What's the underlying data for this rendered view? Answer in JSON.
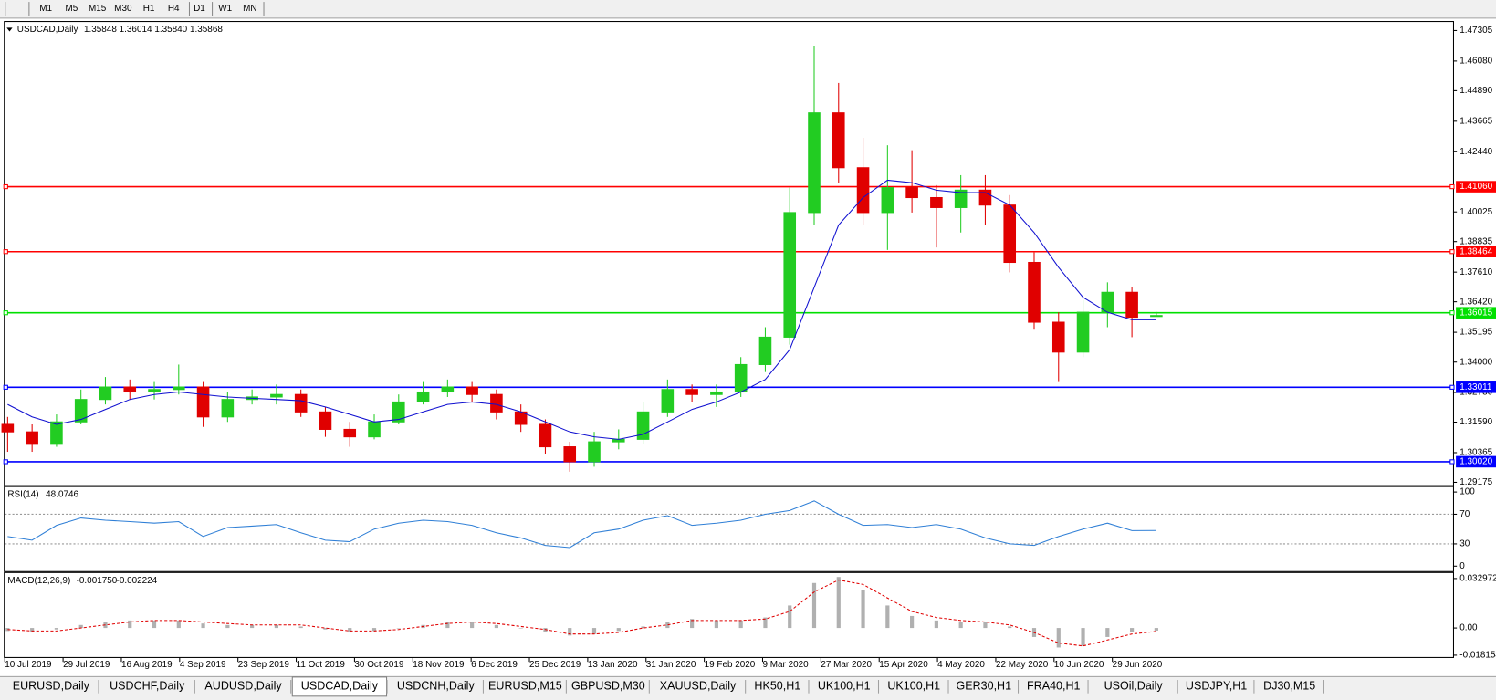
{
  "toolbar": {
    "timeframes": [
      "M1",
      "M5",
      "M15",
      "M30",
      "H1",
      "H4",
      "D1",
      "W1",
      "MN"
    ]
  },
  "header": {
    "symbol": "USDCAD,Daily",
    "open": "1.35848",
    "high": "1.36014",
    "low": "1.35840",
    "close": "1.35868"
  },
  "chart_data": {
    "type": "candlestick",
    "up_color": "#22cc22",
    "down_color": "#e00000",
    "open": [
      1.315,
      1.312,
      1.307,
      1.316,
      1.325,
      1.33,
      1.328,
      1.329,
      1.33,
      1.318,
      1.325,
      1.326,
      1.327,
      1.32,
      1.313,
      1.31,
      1.316,
      1.324,
      1.328,
      1.33,
      1.327,
      1.32,
      1.315,
      1.306,
      1.3,
      1.308,
      1.309,
      1.32,
      1.329,
      1.327,
      1.328,
      1.339,
      1.35,
      1.4,
      1.44,
      1.418,
      1.4,
      1.41,
      1.406,
      1.402,
      1.409,
      1.403,
      1.38,
      1.356,
      1.344,
      1.36,
      1.368,
      1.35848
    ],
    "high": [
      1.318,
      1.315,
      1.319,
      1.329,
      1.334,
      1.333,
      1.332,
      1.339,
      1.332,
      1.328,
      1.329,
      1.331,
      1.329,
      1.322,
      1.316,
      1.319,
      1.327,
      1.332,
      1.333,
      1.332,
      1.329,
      1.323,
      1.317,
      1.308,
      1.312,
      1.313,
      1.324,
      1.333,
      1.331,
      1.331,
      1.342,
      1.354,
      1.41,
      1.467,
      1.452,
      1.43,
      1.427,
      1.425,
      1.411,
      1.415,
      1.415,
      1.407,
      1.384,
      1.36,
      1.365,
      1.372,
      1.37,
      1.36014
    ],
    "low": [
      1.304,
      1.304,
      1.306,
      1.315,
      1.323,
      1.325,
      1.325,
      1.327,
      1.314,
      1.316,
      1.323,
      1.323,
      1.318,
      1.31,
      1.306,
      1.309,
      1.315,
      1.323,
      1.326,
      1.324,
      1.317,
      1.312,
      1.303,
      1.296,
      1.298,
      1.305,
      1.307,
      1.318,
      1.324,
      1.322,
      1.326,
      1.336,
      1.347,
      1.395,
      1.412,
      1.395,
      1.385,
      1.4,
      1.386,
      1.392,
      1.395,
      1.376,
      1.353,
      1.332,
      1.342,
      1.354,
      1.35,
      1.3584
    ],
    "close": [
      1.312,
      1.307,
      1.316,
      1.325,
      1.33,
      1.328,
      1.329,
      1.33,
      1.318,
      1.325,
      1.326,
      1.327,
      1.32,
      1.313,
      1.31,
      1.316,
      1.324,
      1.328,
      1.33,
      1.327,
      1.32,
      1.315,
      1.306,
      1.3,
      1.308,
      1.309,
      1.32,
      1.329,
      1.327,
      1.328,
      1.339,
      1.35,
      1.4,
      1.44,
      1.418,
      1.4,
      1.41,
      1.406,
      1.402,
      1.409,
      1.403,
      1.38,
      1.356,
      1.344,
      1.36,
      1.368,
      1.358,
      1.35868
    ],
    "moving_average": {
      "color": "#1010d0",
      "values": [
        1.323,
        1.318,
        1.315,
        1.317,
        1.321,
        1.325,
        1.327,
        1.328,
        1.327,
        1.326,
        1.3255,
        1.325,
        1.3245,
        1.322,
        1.319,
        1.316,
        1.317,
        1.32,
        1.323,
        1.324,
        1.323,
        1.32,
        1.316,
        1.312,
        1.31,
        1.309,
        1.311,
        1.316,
        1.321,
        1.324,
        1.328,
        1.333,
        1.345,
        1.37,
        1.395,
        1.406,
        1.413,
        1.412,
        1.409,
        1.408,
        1.408,
        1.403,
        1.392,
        1.378,
        1.366,
        1.36,
        1.357,
        1.357
      ]
    },
    "ylim": [
      1.291,
      1.4761
    ],
    "yticks": [
      1.47305,
      {
        "value": 1.4608,
        "label": "1.46080"
      },
      {
        "value": 1.4489,
        "label": "1.44890"
      },
      1.43665,
      {
        "value": 1.4244,
        "label": "1.42440"
      },
      1.40025,
      1.38835,
      {
        "value": 1.3761,
        "label": "1.37610"
      },
      {
        "value": 1.3642,
        "label": "1.36420"
      },
      1.35195,
      {
        "value": 1.34,
        "label": "1.34000"
      },
      {
        "value": 1.3278,
        "label": "1.32780"
      },
      {
        "value": 1.3159,
        "label": "1.31590"
      },
      1.30365,
      1.29175
    ],
    "levels": [
      {
        "value": 1.4106,
        "label": "1.41060",
        "color": "#ff0000"
      },
      {
        "value": 1.38464,
        "color": "#ff0000"
      },
      {
        "value": 1.36015,
        "color": "#00e000"
      },
      {
        "value": 1.33011,
        "color": "#0000ff"
      },
      {
        "value": 1.3002,
        "label": "1.30020",
        "color": "#0000ff"
      }
    ],
    "x_labels": [
      "10 Jul 2019",
      "29 Jul 2019",
      "16 Aug 2019",
      "4 Sep 2019",
      "23 Sep 2019",
      "11 Oct 2019",
      "30 Oct 2019",
      "18 Nov 2019",
      "6 Dec 2019",
      "25 Dec 2019",
      "13 Jan 2020",
      "31 Jan 2020",
      "19 Feb 2020",
      "9 Mar 2020",
      "27 Mar 2020",
      "15 Apr 2020",
      "4 May 2020",
      "22 May 2020",
      "10 Jun 2020",
      "29 Jun 2020"
    ]
  },
  "rsi": {
    "label": "RSI(14)",
    "color": "#2f7fd6",
    "values": [
      40,
      35,
      55,
      65,
      62,
      60,
      58,
      60,
      40,
      52,
      54,
      56,
      45,
      35,
      33,
      50,
      58,
      62,
      60,
      55,
      45,
      38,
      28,
      25,
      45,
      50,
      62,
      68,
      55,
      58,
      62,
      70,
      75,
      88,
      70,
      55,
      56,
      52,
      56,
      50,
      38,
      30,
      28,
      40,
      50,
      58,
      48,
      48.0746
    ],
    "ylim": [
      -8,
      108
    ],
    "yticks": [
      100,
      70,
      30,
      0
    ],
    "levels": [
      70,
      30
    ]
  },
  "macd": {
    "label": "MACD(12,26,9)",
    "main_text": "-0.001750",
    "signal_text": "-0.002224",
    "hist_color": "#b0b0b0",
    "signal_color": "#e00000",
    "values": [
      -0.002,
      -0.003,
      -0.001,
      0.002,
      0.004,
      0.005,
      0.005,
      0.005,
      0.003,
      0.002,
      0.002,
      0.002,
      0.001,
      -0.001,
      -0.003,
      -0.002,
      0,
      0.002,
      0.004,
      0.004,
      0.002,
      0,
      -0.003,
      -0.005,
      -0.004,
      -0.002,
      0.001,
      0.004,
      0.006,
      0.005,
      0.005,
      0.007,
      0.015,
      0.03,
      0.034,
      0.025,
      0.015,
      0.008,
      0.005,
      0.004,
      0.004,
      0.001,
      -0.006,
      -0.013,
      -0.012,
      -0.006,
      -0.003,
      -0.00175
    ],
    "signal": [
      -0.001,
      -0.002,
      -0.002,
      0,
      0.002,
      0.004,
      0.005,
      0.005,
      0.004,
      0.003,
      0.002,
      0.002,
      0.002,
      0,
      -0.002,
      -0.002,
      -0.001,
      0.001,
      0.003,
      0.004,
      0.003,
      0.001,
      -0.001,
      -0.004,
      -0.004,
      -0.003,
      0,
      0.002,
      0.005,
      0.005,
      0.005,
      0.006,
      0.011,
      0.024,
      0.032,
      0.029,
      0.02,
      0.011,
      0.007,
      0.005,
      0.004,
      0.002,
      -0.003,
      -0.01,
      -0.012,
      -0.008,
      -0.004,
      -0.002224
    ],
    "ylim": [
      -0.02,
      0.0373
    ],
    "yticks": [
      0.032972,
      {
        "value": 0,
        "label": "0.00"
      },
      -0.018154
    ]
  },
  "tabs": {
    "items": [
      "EURUSD,Daily",
      "USDCHF,Daily",
      "AUDUSD,Daily",
      "USDCAD,Daily",
      "USDCNH,Daily",
      "EURUSD,M15",
      "GBPUSD,M30",
      "XAUUSD,Daily",
      "HK50,H1",
      "UK100,H1",
      "UK100,H1",
      "GER30,H1",
      "FRA40,H1",
      "USOil,Daily",
      "USDJPY,H1",
      "DJ30,M15"
    ],
    "active": 3
  }
}
